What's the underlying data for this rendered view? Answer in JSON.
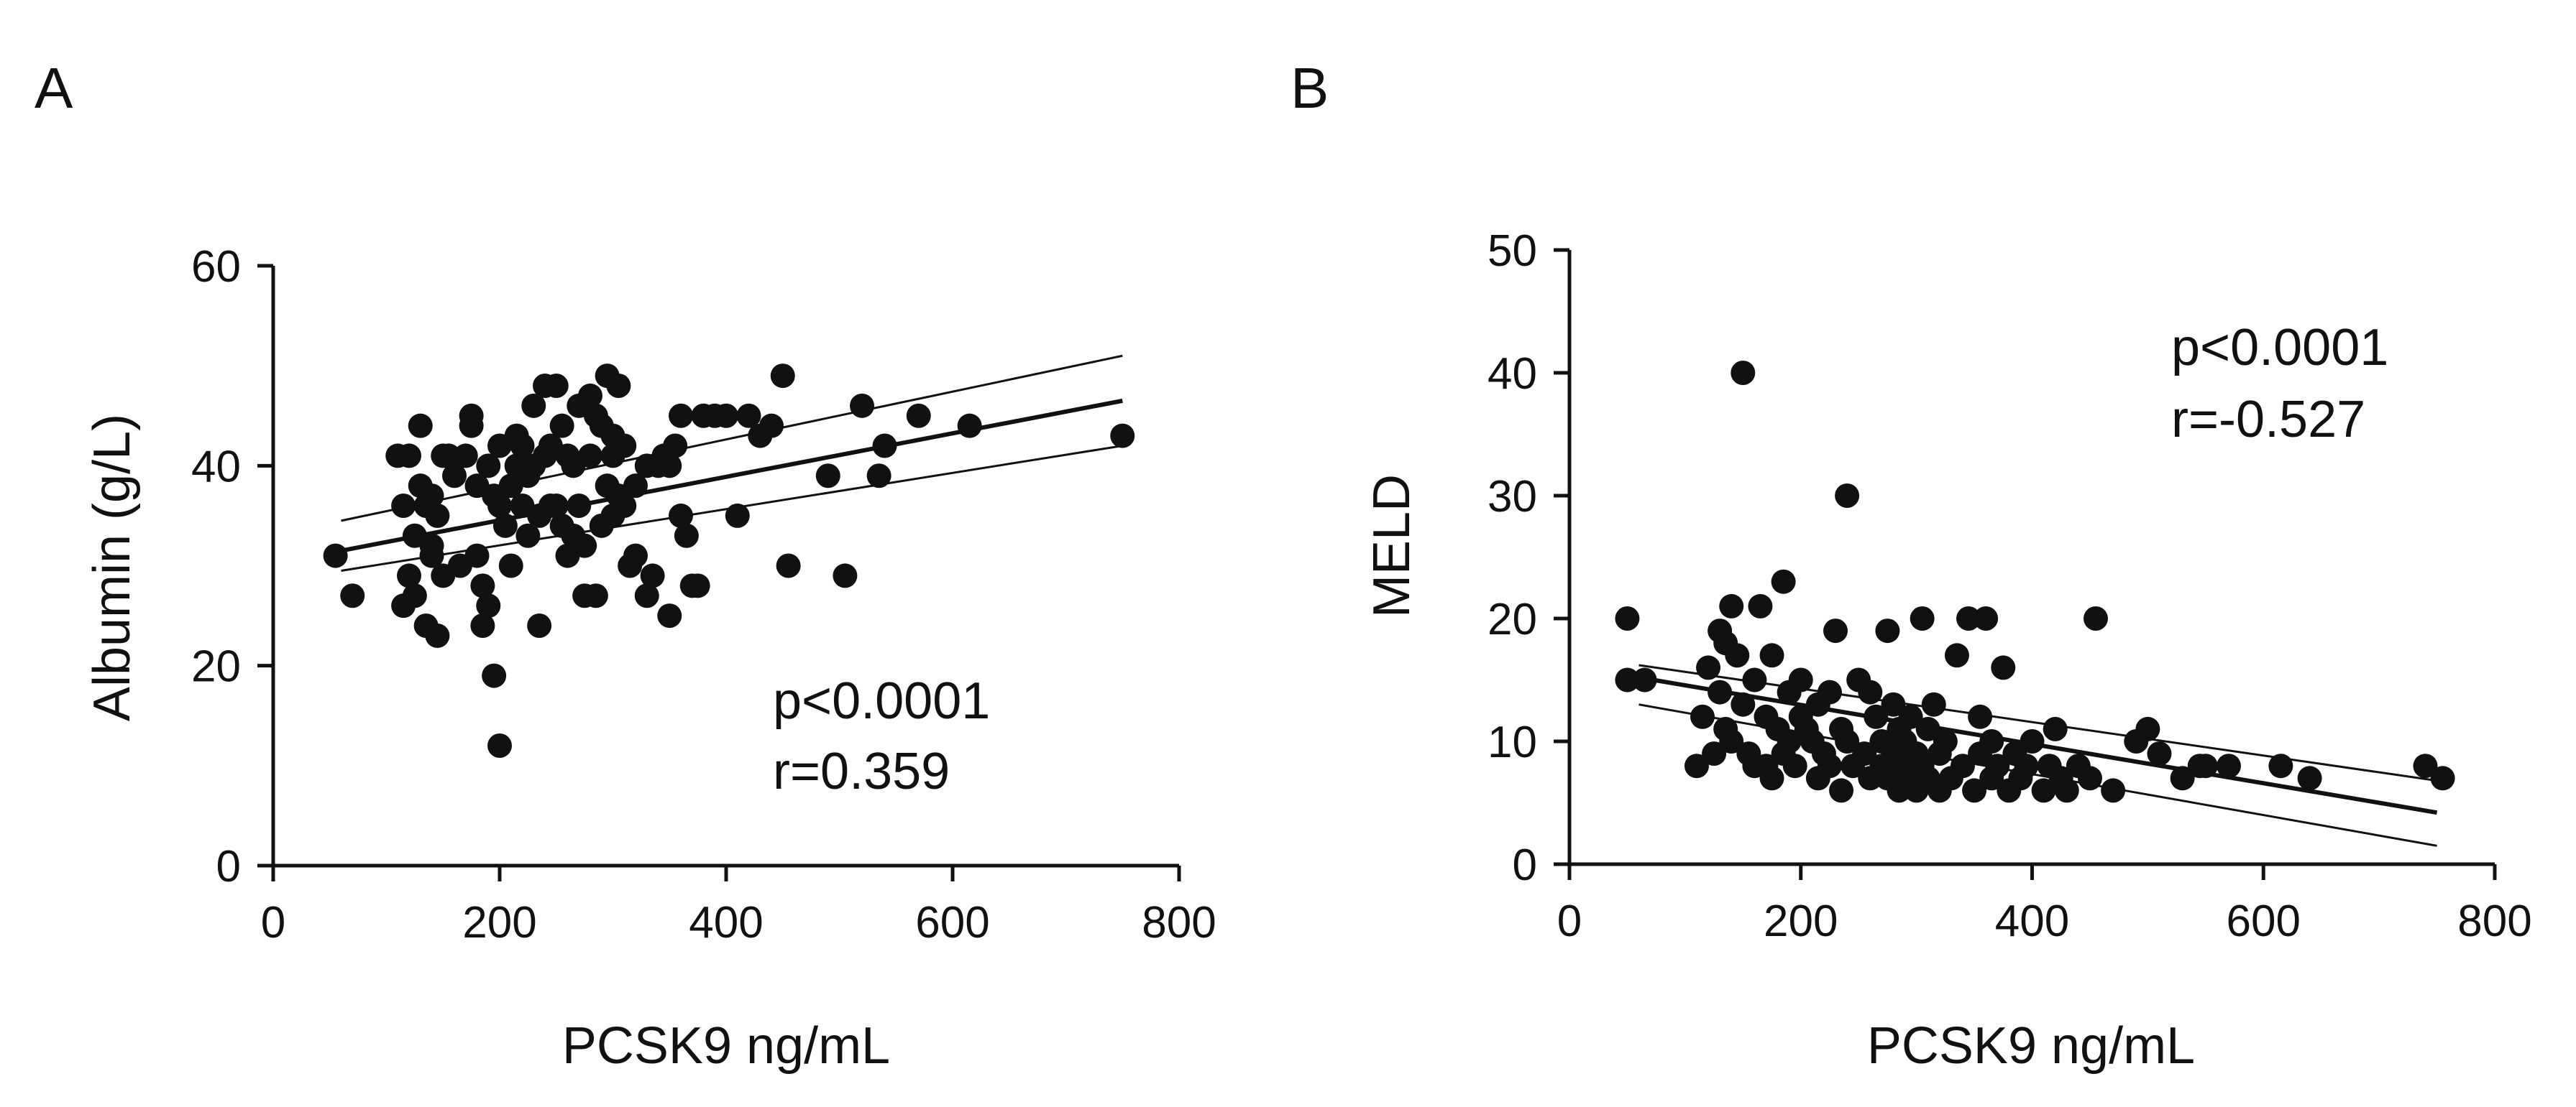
{
  "chart_data": [
    {
      "panel": "A",
      "type": "scatter",
      "title": "",
      "xlabel": "PCSK9 ng/mL",
      "ylabel": "Albumin (g/L)",
      "xlim": [
        0,
        800
      ],
      "ylim": [
        0,
        60
      ],
      "xticks": [
        0,
        200,
        400,
        600,
        800
      ],
      "yticks": [
        0,
        20,
        40,
        60
      ],
      "grid": false,
      "annotations": [
        {
          "text": "p<0.0001"
        },
        {
          "text": "r=0.359"
        }
      ],
      "regression": {
        "x": [
          60,
          750
        ],
        "y": [
          31.5,
          46.5
        ]
      },
      "ci_upper": {
        "x": [
          60,
          750
        ],
        "y": [
          34.5,
          51
        ]
      },
      "ci_lower": {
        "x": [
          60,
          750
        ],
        "y": [
          29.5,
          42
        ]
      },
      "x": [
        55,
        70,
        110,
        115,
        115,
        120,
        120,
        125,
        125,
        130,
        130,
        135,
        135,
        140,
        140,
        140,
        145,
        145,
        150,
        150,
        155,
        160,
        165,
        170,
        175,
        175,
        180,
        180,
        185,
        185,
        190,
        190,
        195,
        195,
        200,
        200,
        200,
        205,
        210,
        210,
        215,
        215,
        220,
        220,
        225,
        225,
        230,
        230,
        235,
        235,
        240,
        240,
        245,
        245,
        250,
        250,
        255,
        255,
        260,
        260,
        265,
        265,
        270,
        270,
        275,
        275,
        280,
        280,
        285,
        285,
        290,
        290,
        295,
        295,
        300,
        300,
        300,
        305,
        305,
        310,
        310,
        315,
        320,
        320,
        330,
        330,
        335,
        340,
        345,
        350,
        350,
        355,
        360,
        360,
        365,
        370,
        375,
        380,
        390,
        400,
        410,
        420,
        430,
        440,
        450,
        455,
        490,
        505,
        520,
        535,
        540,
        570,
        615,
        750
      ],
      "y": [
        31,
        27,
        41,
        26,
        36,
        41,
        29,
        33,
        27,
        44,
        38,
        36,
        24,
        37,
        32,
        31,
        35,
        23,
        29,
        41,
        41,
        39,
        30,
        41,
        44,
        45,
        31,
        38,
        28,
        24,
        26,
        40,
        19,
        37,
        12,
        36,
        42,
        34,
        30,
        38,
        40,
        43,
        42,
        36,
        33,
        39,
        46,
        40,
        35,
        24,
        48,
        41,
        42,
        36,
        48,
        36,
        34,
        44,
        41,
        31,
        40,
        33,
        46,
        36,
        27,
        32,
        41,
        47,
        45,
        27,
        44,
        34,
        49,
        38,
        41,
        35,
        43,
        48,
        37,
        36,
        42,
        30,
        31,
        38,
        27,
        40,
        29,
        40,
        41,
        40,
        25,
        42,
        45,
        35,
        33,
        28,
        28,
        45,
        45,
        45,
        35,
        45,
        43,
        44,
        49,
        30,
        39,
        29,
        46,
        39,
        42,
        45,
        44,
        43
      ]
    },
    {
      "panel": "B",
      "type": "scatter",
      "title": "",
      "xlabel": "PCSK9 ng/mL",
      "ylabel": "MELD",
      "xlim": [
        0,
        800
      ],
      "ylim": [
        0,
        50
      ],
      "xticks": [
        0,
        200,
        400,
        600,
        800
      ],
      "yticks": [
        0,
        10,
        20,
        30,
        40,
        50
      ],
      "grid": false,
      "annotations": [
        {
          "text": "p<0.0001"
        },
        {
          "text": "r=-0.527"
        }
      ],
      "regression": {
        "x": [
          60,
          750
        ],
        "y": [
          15.2,
          4.2
        ]
      },
      "ci_upper": {
        "x": [
          60,
          750
        ],
        "y": [
          16.2,
          6.8
        ]
      },
      "ci_lower": {
        "x": [
          60,
          750
        ],
        "y": [
          13.0,
          1.5
        ]
      },
      "x": [
        50,
        50,
        65,
        110,
        115,
        120,
        125,
        130,
        130,
        135,
        135,
        140,
        140,
        145,
        150,
        150,
        155,
        160,
        160,
        165,
        170,
        170,
        175,
        175,
        180,
        185,
        185,
        190,
        190,
        195,
        200,
        200,
        205,
        210,
        215,
        215,
        220,
        225,
        225,
        230,
        235,
        235,
        240,
        240,
        245,
        250,
        255,
        260,
        260,
        265,
        270,
        270,
        275,
        275,
        280,
        280,
        285,
        285,
        290,
        290,
        295,
        295,
        300,
        300,
        305,
        305,
        310,
        310,
        315,
        320,
        320,
        325,
        330,
        335,
        340,
        345,
        350,
        355,
        355,
        360,
        365,
        365,
        370,
        375,
        380,
        385,
        390,
        395,
        400,
        410,
        415,
        420,
        425,
        430,
        440,
        450,
        455,
        470,
        490,
        500,
        510,
        530,
        545,
        550,
        570,
        615,
        640,
        740,
        755
      ],
      "y": [
        20,
        15,
        15,
        8,
        12,
        16,
        9,
        14,
        19,
        11,
        18,
        21,
        10,
        17,
        40,
        13,
        9,
        15,
        8,
        21,
        12,
        8,
        17,
        7,
        11,
        23,
        9,
        14,
        10,
        8,
        12,
        15,
        11,
        10,
        7,
        13,
        9,
        14,
        8,
        19,
        6,
        11,
        10,
        30,
        8,
        15,
        9,
        14,
        7,
        12,
        8,
        10,
        19,
        7,
        13,
        9,
        6,
        11,
        8,
        10,
        7,
        12,
        9,
        6,
        20,
        8,
        11,
        7,
        13,
        9,
        6,
        10,
        7,
        17,
        8,
        20,
        6,
        12,
        9,
        20,
        7,
        10,
        8,
        16,
        6,
        9,
        7,
        8,
        10,
        6,
        8,
        11,
        7,
        6,
        8,
        7,
        20,
        6,
        10,
        11,
        9,
        7,
        8,
        8,
        8,
        8,
        7,
        8,
        7
      ]
    }
  ],
  "figure": {
    "panel_a_letter": "A",
    "panel_b_letter": "B"
  }
}
